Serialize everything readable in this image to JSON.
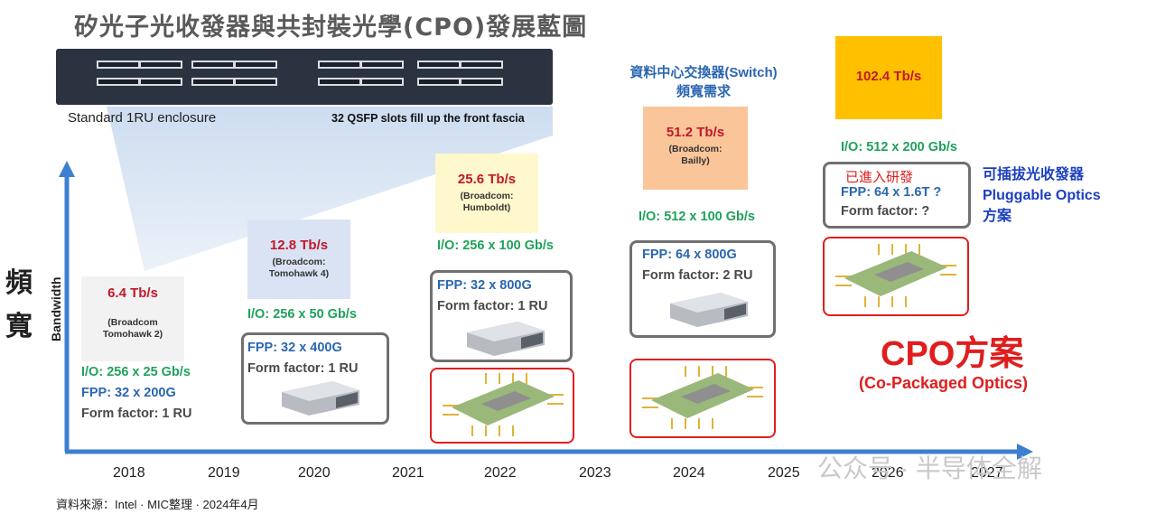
{
  "title": "矽光子光收發器與共封裝光學(CPO)發展藍圖",
  "enclosure": {
    "label": "Standard 1RU enclosure",
    "slots_label": "32 QSFP slots fill up the front fascia"
  },
  "yaxis": {
    "cn_top": "頻",
    "cn_bottom": "寬",
    "label": "Bandwidth"
  },
  "years": [
    "2018",
    "2019",
    "2020",
    "2021",
    "2022",
    "2023",
    "2024",
    "2025",
    "2026",
    "2027"
  ],
  "gen2018": {
    "speed": "6.4 Tb/s",
    "chip": "(Broadcom Tomohawk 2)",
    "io": "I/O: 256 x 25 Gb/s",
    "fpp": "FPP: 32 x 200G",
    "ff": "Form factor: 1 RU"
  },
  "gen2020": {
    "speed": "12.8 Tb/s",
    "chip": "(Broadcom: Tomohawk 4)",
    "io": "I/O: 256 x 50 Gb/s",
    "fpp": "FPP: 32 x 400G",
    "ff": "Form factor: 1 RU"
  },
  "gen2022": {
    "speed": "25.6 Tb/s",
    "chip": "(Broadcom: Humboldt)",
    "io": "I/O: 256 x 100 Gb/s",
    "fpp": "FPP: 32 x 800G",
    "ff": "Form factor: 1 RU"
  },
  "gen2024": {
    "speed": "51.2 Tb/s",
    "chip": "(Broadcom: Bailly)",
    "io": "I/O: 512 x 100 Gb/s",
    "fpp": "FPP: 64 x 800G",
    "ff": "Form factor: 2 RU"
  },
  "gen2026": {
    "speed": "102.4 Tb/s",
    "io": "I/O: 512 x 200 Gb/s",
    "rd": "已進入研發",
    "fpp": "FPP: 64 x 1.6T ?",
    "ff": "Form factor: ?"
  },
  "switch_label": {
    "line1": "資料中心交換器(Switch)",
    "line2": "頻寬需求"
  },
  "pluggable": {
    "line1": "可插拔光收發器",
    "line2": "Pluggable Optics",
    "line3": "方案"
  },
  "cpo": {
    "title": "CPO方案",
    "subtitle": "(Co-Packaged Optics)"
  },
  "source": "資料來源：Intel · MIC整理 · 2024年4月",
  "watermark": "公众号 · 半导体全解",
  "colors": {
    "axis": "#3d7fd0",
    "red": "#c0182b",
    "green": "#1fa25b",
    "blue": "#2b66b0",
    "gold": "#ffc000",
    "orange": "#fbc59a"
  }
}
